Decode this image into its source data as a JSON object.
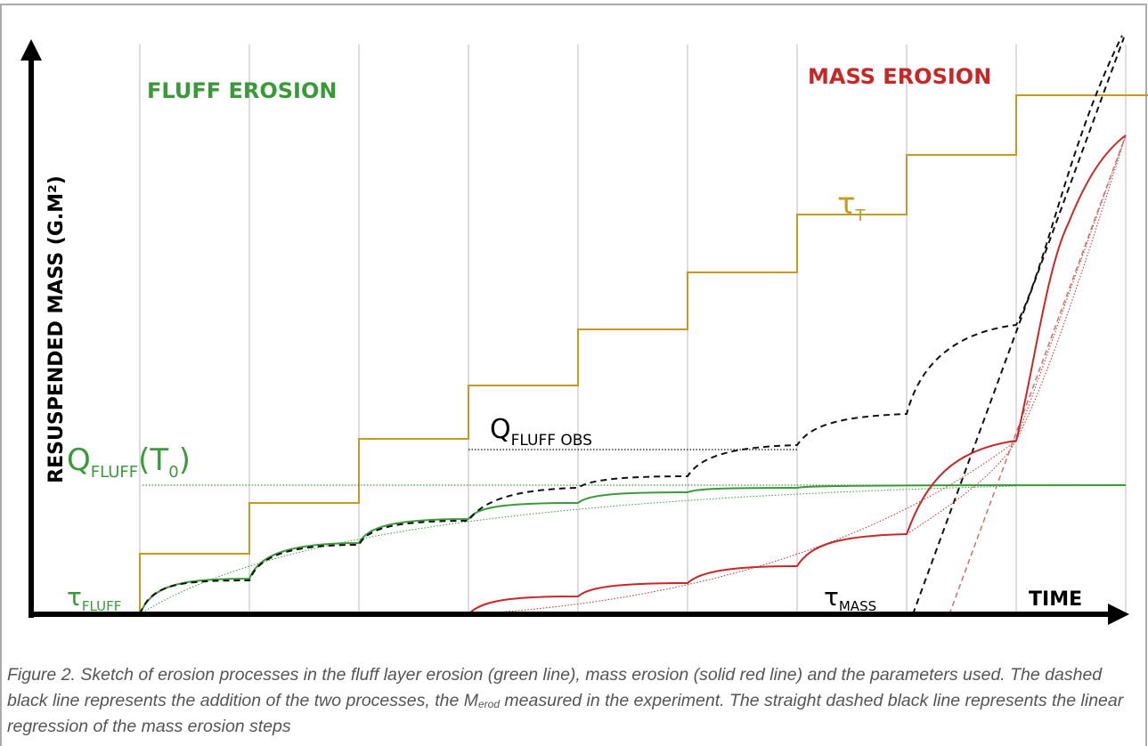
{
  "figure": {
    "labels": {
      "fluff_erosion": "FLUFF EROSION",
      "mass_erosion": "MASS EROSION",
      "y_axis": "RESUSPENDED MASS (G.M²)",
      "x_axis": "TIME",
      "tau_t": {
        "symbol": "τ",
        "subscript": "T"
      },
      "q_fluff_obs": {
        "symbol": "Q",
        "subscript": "FLUFF OBS"
      },
      "q_fluff_t0": {
        "symbol": "Q",
        "subscript": "FLUFF",
        "open": "(T",
        "inner_subscript": "0",
        "close": ")"
      },
      "tau_fluff": {
        "symbol": "τ",
        "subscript": "FLUFF"
      },
      "tau_mass": {
        "symbol": "τ",
        "subscript": "MASS"
      }
    },
    "caption": {
      "before": "Figure 2. Sketch of erosion processes in the fluff layer erosion (green line), mass erosion (solid red line) and the parameters used. The dashed black line represents the addition of the two processes, the ",
      "symbol": "M",
      "subscript": "erod",
      "after": " measured in the experiment. The straight dashed black line represents the linear regression of the mass erosion steps"
    }
  }
}
